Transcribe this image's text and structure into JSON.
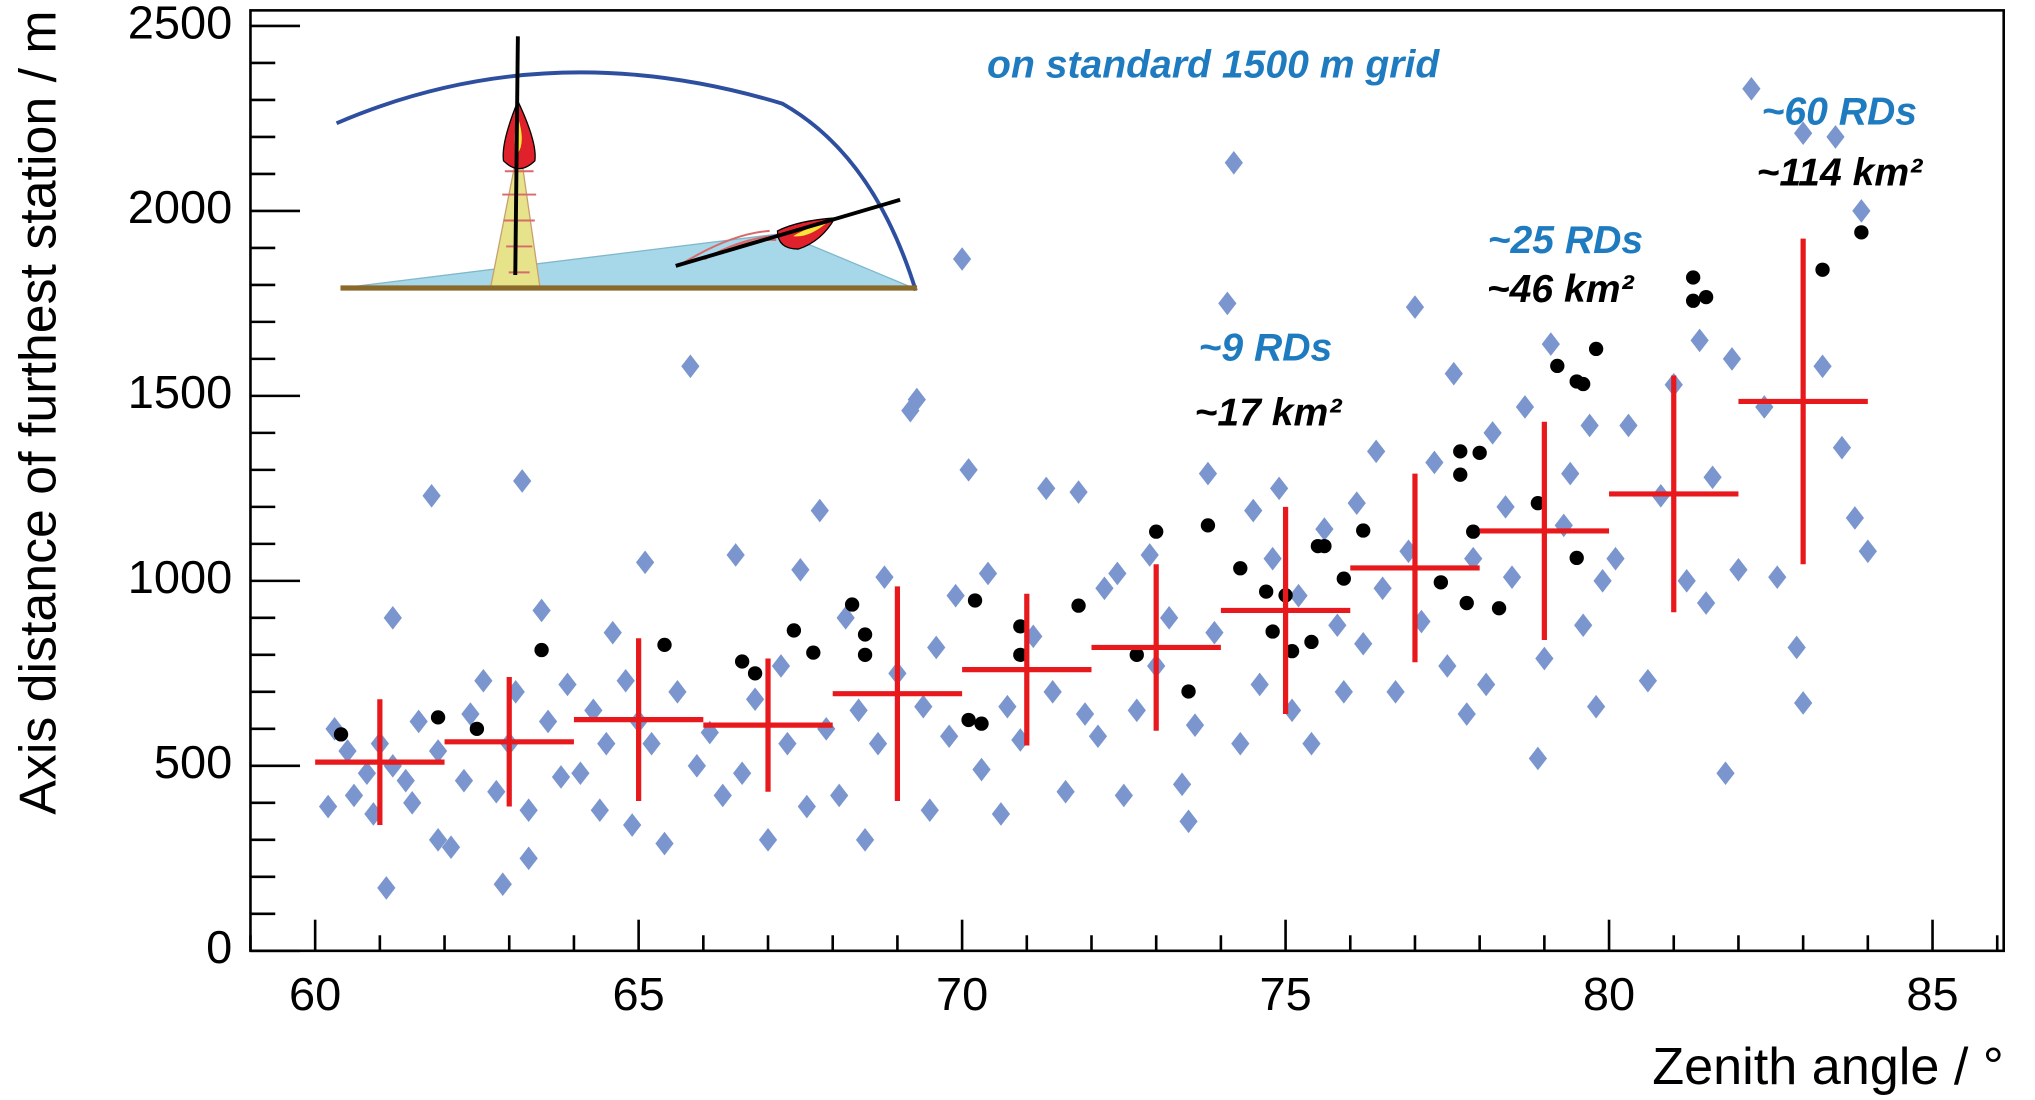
{
  "chart_data": {
    "type": "scatter",
    "xlabel": "Zenith angle / °",
    "ylabel": "Axis distance of furthest station / m",
    "xlim": [
      59.0,
      86.1
    ],
    "ylim": [
      0,
      2542
    ],
    "xticks": [
      60,
      65,
      70,
      75,
      80,
      85
    ],
    "yticks": [
      0,
      500,
      1000,
      1500,
      2000,
      2500
    ],
    "xminorticks": [
      59,
      61,
      62,
      63,
      64,
      66,
      67,
      68,
      69,
      71,
      72,
      73,
      74,
      76,
      77,
      78,
      79,
      81,
      82,
      83,
      84,
      86
    ],
    "yminorticks": [
      100,
      200,
      300,
      400,
      600,
      700,
      800,
      900,
      1100,
      1200,
      1300,
      1400,
      1600,
      1700,
      1800,
      1900,
      2100,
      2200,
      2300,
      2400
    ],
    "annotations": [
      {
        "text": "on standard 1500 m grid",
        "color": "#1f7bbf"
      },
      {
        "text": "~9 RDs",
        "color": "#1f7bbf"
      },
      {
        "text": "~17 km²",
        "color": "#000000"
      },
      {
        "text": "~25 RDs",
        "color": "#1f7bbf"
      },
      {
        "text": "~46 km²",
        "color": "#000000"
      },
      {
        "text": "~60 RDs",
        "color": "#1f7bbf"
      },
      {
        "text": "~114 km²",
        "color": "#000000"
      }
    ],
    "series": [
      {
        "marker": "diamond",
        "color": "#7b96cf",
        "x": [
          60.2,
          60.3,
          60.5,
          60.6,
          60.8,
          60.9,
          61.0,
          61.1,
          61.2,
          61.4,
          61.5,
          61.6,
          61.8,
          61.9,
          61.9,
          61.2,
          62.1,
          62.3,
          62.4,
          62.6,
          62.8,
          62.9,
          63.0,
          63.1,
          63.2,
          63.3,
          63.5,
          63.6,
          63.8,
          63.9,
          63.3,
          64.1,
          64.3,
          64.4,
          64.6,
          64.8,
          64.9,
          65.1,
          65.2,
          65.4,
          65.6,
          65.8,
          65.9,
          64.5,
          65.0,
          66.1,
          66.3,
          66.5,
          66.6,
          66.8,
          67.0,
          67.2,
          67.3,
          67.5,
          67.6,
          67.8,
          67.9,
          68.1,
          68.2,
          68.4,
          68.5,
          68.7,
          68.8,
          69.0,
          69.2,
          69.3,
          69.5,
          69.6,
          69.8,
          69.9,
          69.4,
          70.0,
          70.1,
          70.3,
          70.4,
          70.6,
          70.7,
          70.9,
          71.1,
          71.3,
          71.4,
          71.6,
          71.8,
          71.9,
          72.1,
          72.2,
          72.4,
          72.5,
          72.7,
          72.9,
          73.0,
          73.2,
          73.4,
          73.5,
          73.6,
          73.8,
          73.9,
          74.1,
          74.2,
          74.3,
          74.5,
          74.6,
          74.8,
          74.9,
          75.1,
          75.2,
          75.4,
          75.6,
          75.8,
          75.9,
          76.1,
          76.2,
          76.4,
          76.5,
          76.7,
          76.9,
          77.0,
          77.1,
          77.3,
          77.5,
          77.6,
          77.8,
          77.9,
          78.1,
          78.2,
          78.4,
          78.5,
          78.7,
          78.9,
          79.0,
          79.1,
          79.3,
          79.4,
          79.6,
          79.7,
          79.9,
          79.8,
          80.1,
          80.3,
          80.6,
          80.8,
          81.0,
          81.2,
          81.4,
          81.6,
          81.8,
          81.9,
          81.5,
          82.0,
          82.2,
          82.4,
          82.6,
          82.9,
          83.0,
          83.0,
          83.3,
          83.5,
          83.6,
          83.8,
          84.0,
          83.9
        ],
        "values": [
          390,
          600,
          540,
          420,
          480,
          370,
          560,
          170,
          500,
          460,
          400,
          620,
          1230,
          300,
          540,
          900,
          280,
          460,
          640,
          730,
          430,
          180,
          560,
          700,
          1270,
          380,
          920,
          620,
          470,
          720,
          250,
          480,
          650,
          380,
          860,
          730,
          340,
          1050,
          560,
          290,
          700,
          1580,
          500,
          560,
          620,
          590,
          420,
          1070,
          480,
          680,
          300,
          770,
          560,
          1030,
          390,
          1190,
          600,
          420,
          900,
          650,
          300,
          560,
          1010,
          750,
          1460,
          1490,
          380,
          820,
          580,
          960,
          660,
          1870,
          1300,
          490,
          1020,
          370,
          660,
          570,
          850,
          1250,
          700,
          430,
          1240,
          640,
          580,
          980,
          1020,
          420,
          650,
          1070,
          770,
          900,
          450,
          350,
          610,
          1290,
          860,
          1750,
          2130,
          560,
          1190,
          720,
          1060,
          1250,
          650,
          960,
          560,
          1140,
          880,
          700,
          1210,
          830,
          1350,
          980,
          700,
          1080,
          1740,
          890,
          1320,
          770,
          1560,
          640,
          1060,
          720,
          1400,
          1200,
          1010,
          1470,
          520,
          790,
          1640,
          1150,
          1290,
          880,
          1420,
          1000,
          660,
          1060,
          1420,
          730,
          1230,
          1530,
          1000,
          1650,
          1280,
          480,
          1600,
          940,
          1030,
          2330,
          1470,
          1010,
          820,
          670,
          2210,
          1580,
          2200,
          1360,
          1170,
          1080,
          2000
        ]
      },
      {
        "marker": "dot",
        "color": "#000000",
        "x": [
          60.4,
          61.9,
          62.5,
          63.5,
          65.4,
          66.6,
          66.8,
          67.4,
          67.7,
          68.3,
          68.5,
          68.5,
          70.1,
          70.3,
          70.2,
          70.9,
          70.9,
          71.8,
          72.7,
          73.0,
          73.5,
          73.8,
          74.3,
          74.7,
          74.8,
          75.0,
          75.1,
          75.4,
          75.5,
          75.6,
          75.9,
          76.2,
          77.4,
          77.7,
          77.7,
          78.0,
          77.9,
          77.8,
          78.3,
          78.9,
          79.2,
          79.5,
          79.6,
          79.8,
          79.5,
          81.3,
          81.3,
          81.5,
          83.3,
          83.9
        ],
        "values": [
          585,
          631,
          600,
          813,
          827,
          782,
          750,
          866,
          806,
          936,
          855,
          800,
          624,
          614,
          947,
          877,
          800,
          933,
          800,
          1133,
          701,
          1150,
          1034,
          971,
          863,
          961,
          810,
          835,
          1094,
          1094,
          1006,
          1136,
          996,
          1287,
          1350,
          1346,
          1133,
          940,
          926,
          1210,
          1581,
          1539,
          1532,
          1627,
          1062,
          1820,
          1757,
          1767,
          1841,
          1942
        ]
      },
      {
        "marker": "cross",
        "color": "#e8191c",
        "x": [
          61,
          63,
          65,
          67,
          69,
          71,
          73,
          75,
          77,
          79,
          81,
          83
        ],
        "xerr": [
          1,
          1,
          1,
          1,
          1,
          1,
          1,
          1,
          1,
          1,
          1,
          1
        ],
        "values": [
          510,
          565,
          625,
          610,
          695,
          760,
          820,
          920,
          1035,
          1135,
          1235,
          1485
        ],
        "yerr": [
          170,
          175,
          220,
          180,
          290,
          205,
          225,
          280,
          255,
          295,
          320,
          440
        ]
      }
    ]
  }
}
